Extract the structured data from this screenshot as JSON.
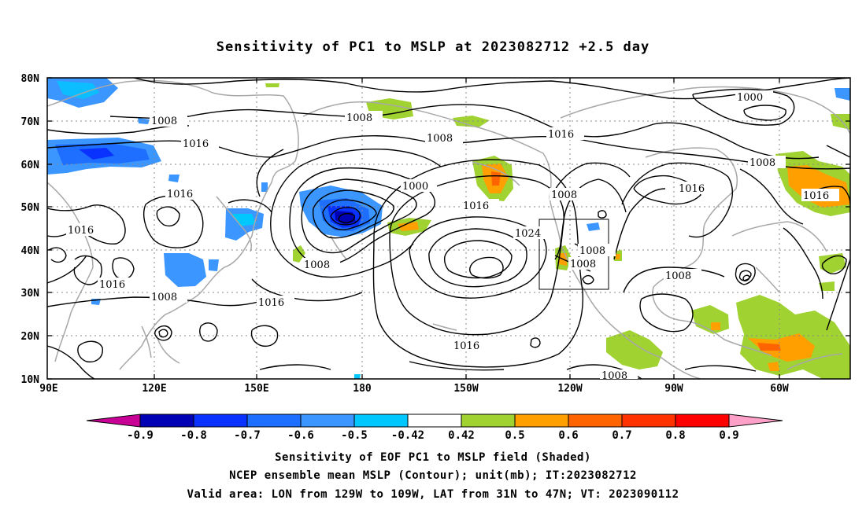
{
  "title": "Sensitivity of PC1 to MSLP at 2023082712 +2.5 day",
  "lat_labels": [
    "80N",
    "70N",
    "60N",
    "50N",
    "40N",
    "30N",
    "20N",
    "10N"
  ],
  "lon_labels": [
    "90E",
    "120E",
    "150E",
    "180",
    "150W",
    "120W",
    "90W",
    "60W"
  ],
  "contour_labels": [
    "1000",
    "1000",
    "1008",
    "1008",
    "1008",
    "1008",
    "1008",
    "1008",
    "1008",
    "1008",
    "1008",
    "1008",
    "1016",
    "1016",
    "1016",
    "1016",
    "1016",
    "1016",
    "1016",
    "1016",
    "1016",
    "1024"
  ],
  "colorbar": {
    "ticks": [
      "-0.9",
      "-0.8",
      "-0.7",
      "-0.6",
      "-0.5",
      "-0.42",
      "0.42",
      "0.5",
      "0.6",
      "0.7",
      "0.8",
      "0.9"
    ],
    "colors": [
      "#0000b4",
      "#0a32ff",
      "#1e6eff",
      "#3c96ff",
      "#00c8ff",
      "#ffffff",
      "#a0d232",
      "#ffa000",
      "#ff6400",
      "#ff3200",
      "#ff0000"
    ],
    "low_end_color": "#c80096",
    "high_end_color": "#ffa0c8"
  },
  "captions": {
    "line1": "Sensitivity of EOF PC1 to MSLP field (Shaded)",
    "line2": "NCEP ensemble mean MSLP (Contour); unit(mb); IT:2023082712",
    "line3": "Valid area: LON from 129W to 109W, LAT from 31N to 47N; VT: 2023090112"
  }
}
